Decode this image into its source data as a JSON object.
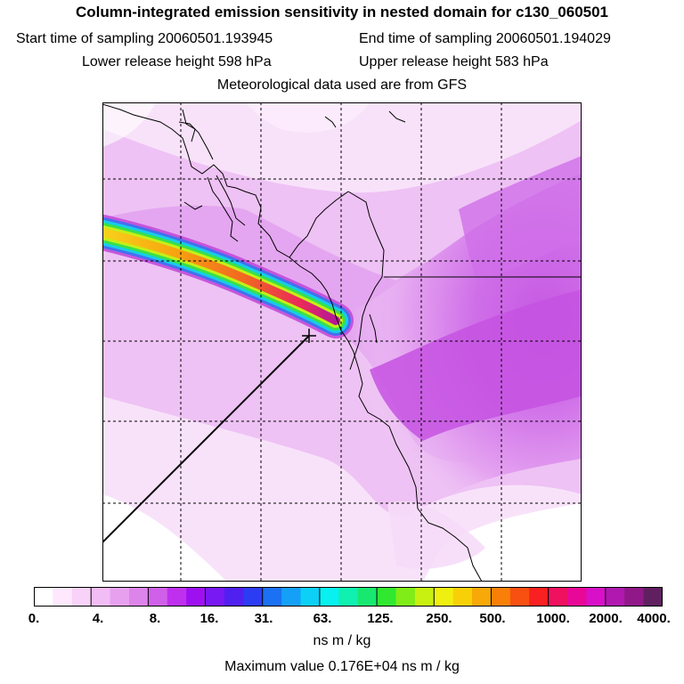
{
  "header": {
    "title": "Column-integrated emission sensitivity in nested domain for c130_060501",
    "start_label": "Start time of sampling 20060501.193945",
    "end_label": "End time of sampling 20060501.194029",
    "lower_label": "Lower release height  598 hPa",
    "upper_label": "Upper release height  583 hPa",
    "met_label": "Meteorological data used are from GFS"
  },
  "colorbar": {
    "tick_labels": [
      "0.",
      "4.",
      "8.",
      "16.",
      "31.",
      "63.",
      "125.",
      "250.",
      "500.",
      "1000.",
      "2000.",
      "4000."
    ],
    "colors": [
      "#ffffff",
      "#fde8fd",
      "#f8d2f8",
      "#f2bcf4",
      "#e7a0ee",
      "#dd84ea",
      "#d060ea",
      "#bf30ee",
      "#9f10f0",
      "#7818f2",
      "#5020f0",
      "#2c3cf2",
      "#1c70f4",
      "#14a0f6",
      "#0cd0f6",
      "#08f0f0",
      "#10f0b0",
      "#18e870",
      "#30e830",
      "#80ec18",
      "#c8f010",
      "#f0f010",
      "#f8d008",
      "#f8a808",
      "#f88008",
      "#f85010",
      "#f82020",
      "#f01060",
      "#e80898",
      "#d810c8",
      "#b018b0",
      "#901888",
      "#602060"
    ],
    "units": "ns m / kg"
  },
  "max_value_label": "Maximum value  0.176E+04 ns m / kg"
}
